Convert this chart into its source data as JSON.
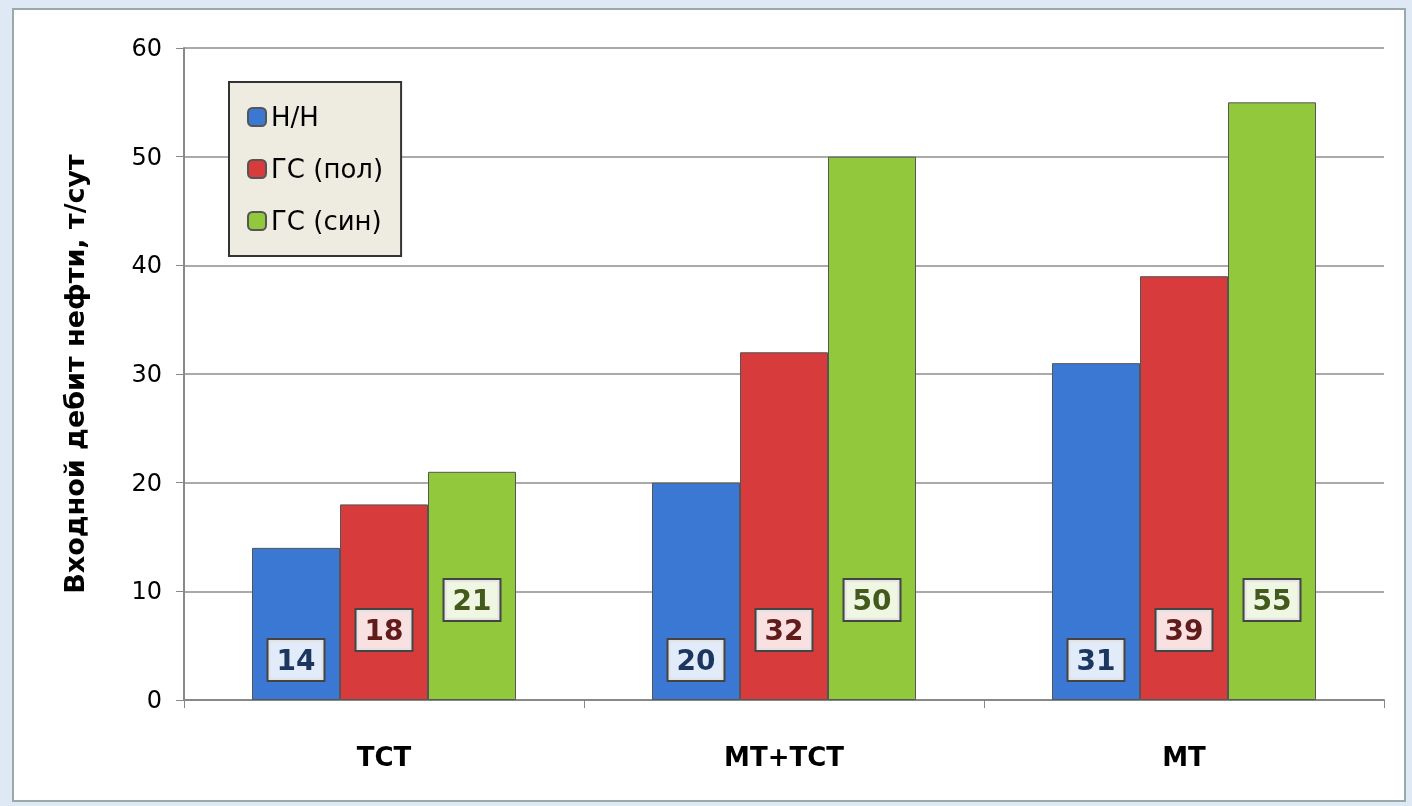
{
  "chart_data": {
    "type": "bar",
    "ylabel": "Входной дебит нефти, т/сут",
    "categories": [
      "ТСТ",
      "МТ+ТСТ",
      "МТ"
    ],
    "series": [
      {
        "name": "Н/Н",
        "color": "#3b78d4",
        "values": [
          14,
          20,
          31
        ]
      },
      {
        "name": "ГС (пол)",
        "color": "#d83b3b",
        "values": [
          18,
          32,
          39
        ]
      },
      {
        "name": "ГС (син)",
        "color": "#92c83c",
        "values": [
          21,
          50,
          55
        ]
      }
    ],
    "ylim": [
      0,
      60
    ],
    "yticks": [
      0,
      10,
      20,
      30,
      40,
      50,
      60
    ],
    "grid": "y",
    "legend": "top left",
    "data_labels": true
  }
}
